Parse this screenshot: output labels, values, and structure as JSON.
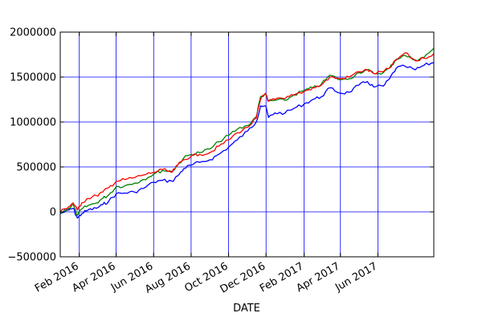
{
  "chart_data": {
    "type": "line",
    "title": "",
    "xlabel": "DATE",
    "ylabel": "",
    "xlim": [
      "2016-01-01",
      "2017-08-31"
    ],
    "ylim": [
      -500000,
      2000000
    ],
    "grid": true,
    "legend": "none",
    "x_ticks": [
      {
        "date": "2016-02-01",
        "label": "Feb 2016"
      },
      {
        "date": "2016-04-01",
        "label": "Apr 2016"
      },
      {
        "date": "2016-06-01",
        "label": "Jun 2016"
      },
      {
        "date": "2016-08-01",
        "label": "Aug 2016"
      },
      {
        "date": "2016-10-01",
        "label": "Oct 2016"
      },
      {
        "date": "2016-12-01",
        "label": "Dec 2016"
      },
      {
        "date": "2017-02-01",
        "label": "Feb 2017"
      },
      {
        "date": "2017-04-01",
        "label": "Apr 2017"
      },
      {
        "date": "2017-06-01",
        "label": "Jun 2017"
      }
    ],
    "y_ticks": [
      {
        "value": -500000,
        "label": "−500000"
      },
      {
        "value": 0,
        "label": "0"
      },
      {
        "value": 500000,
        "label": "500000"
      },
      {
        "value": 1000000,
        "label": "1000000"
      },
      {
        "value": 1500000,
        "label": "1500000"
      },
      {
        "value": 2000000,
        "label": "2000000"
      }
    ],
    "series": [
      {
        "color": "#0000ff",
        "points": [
          [
            "2016-01-01",
            -20000
          ],
          [
            "2016-01-15",
            20000
          ],
          [
            "2016-01-22",
            40000
          ],
          [
            "2016-01-29",
            -70000
          ],
          [
            "2016-02-05",
            -20000
          ],
          [
            "2016-02-15",
            20000
          ],
          [
            "2016-02-29",
            40000
          ],
          [
            "2016-03-10",
            80000
          ],
          [
            "2016-03-20",
            120000
          ],
          [
            "2016-04-01",
            200000
          ],
          [
            "2016-04-15",
            210000
          ],
          [
            "2016-05-01",
            220000
          ],
          [
            "2016-05-15",
            260000
          ],
          [
            "2016-06-01",
            330000
          ],
          [
            "2016-06-15",
            350000
          ],
          [
            "2016-07-01",
            340000
          ],
          [
            "2016-07-10",
            400000
          ],
          [
            "2016-07-20",
            480000
          ],
          [
            "2016-08-01",
            520000
          ],
          [
            "2016-08-15",
            550000
          ],
          [
            "2016-09-01",
            580000
          ],
          [
            "2016-09-15",
            640000
          ],
          [
            "2016-10-01",
            720000
          ],
          [
            "2016-10-15",
            800000
          ],
          [
            "2016-11-01",
            900000
          ],
          [
            "2016-11-15",
            1000000
          ],
          [
            "2016-11-22",
            1180000
          ],
          [
            "2016-11-30",
            1180000
          ],
          [
            "2016-12-05",
            1050000
          ],
          [
            "2016-12-15",
            1100000
          ],
          [
            "2017-01-01",
            1100000
          ],
          [
            "2017-01-15",
            1150000
          ],
          [
            "2017-02-01",
            1200000
          ],
          [
            "2017-02-15",
            1250000
          ],
          [
            "2017-03-01",
            1280000
          ],
          [
            "2017-03-15",
            1380000
          ],
          [
            "2017-04-01",
            1320000
          ],
          [
            "2017-04-15",
            1330000
          ],
          [
            "2017-05-01",
            1410000
          ],
          [
            "2017-05-15",
            1450000
          ],
          [
            "2017-05-25",
            1390000
          ],
          [
            "2017-06-10",
            1400000
          ],
          [
            "2017-06-20",
            1480000
          ],
          [
            "2017-07-01",
            1600000
          ],
          [
            "2017-07-15",
            1620000
          ],
          [
            "2017-08-01",
            1580000
          ],
          [
            "2017-08-15",
            1630000
          ],
          [
            "2017-08-31",
            1660000
          ]
        ]
      },
      {
        "color": "#008000",
        "points": [
          [
            "2016-01-01",
            -10000
          ],
          [
            "2016-01-15",
            40000
          ],
          [
            "2016-01-22",
            80000
          ],
          [
            "2016-01-29",
            -40000
          ],
          [
            "2016-02-05",
            30000
          ],
          [
            "2016-02-15",
            70000
          ],
          [
            "2016-02-29",
            100000
          ],
          [
            "2016-03-10",
            150000
          ],
          [
            "2016-03-20",
            190000
          ],
          [
            "2016-04-01",
            280000
          ],
          [
            "2016-04-15",
            290000
          ],
          [
            "2016-05-01",
            320000
          ],
          [
            "2016-05-15",
            360000
          ],
          [
            "2016-06-01",
            420000
          ],
          [
            "2016-06-15",
            460000
          ],
          [
            "2016-07-01",
            450000
          ],
          [
            "2016-07-10",
            520000
          ],
          [
            "2016-07-20",
            600000
          ],
          [
            "2016-08-01",
            640000
          ],
          [
            "2016-08-15",
            660000
          ],
          [
            "2016-09-01",
            700000
          ],
          [
            "2016-09-15",
            780000
          ],
          [
            "2016-10-01",
            850000
          ],
          [
            "2016-10-15",
            920000
          ],
          [
            "2016-11-01",
            960000
          ],
          [
            "2016-11-15",
            1060000
          ],
          [
            "2016-11-22",
            1280000
          ],
          [
            "2016-11-30",
            1310000
          ],
          [
            "2016-12-05",
            1230000
          ],
          [
            "2016-12-15",
            1240000
          ],
          [
            "2017-01-01",
            1240000
          ],
          [
            "2017-01-15",
            1300000
          ],
          [
            "2017-02-01",
            1350000
          ],
          [
            "2017-02-15",
            1380000
          ],
          [
            "2017-03-01",
            1420000
          ],
          [
            "2017-03-15",
            1520000
          ],
          [
            "2017-04-01",
            1470000
          ],
          [
            "2017-04-15",
            1480000
          ],
          [
            "2017-05-01",
            1550000
          ],
          [
            "2017-05-15",
            1580000
          ],
          [
            "2017-05-25",
            1540000
          ],
          [
            "2017-06-10",
            1550000
          ],
          [
            "2017-06-20",
            1600000
          ],
          [
            "2017-07-01",
            1700000
          ],
          [
            "2017-07-15",
            1740000
          ],
          [
            "2017-08-01",
            1690000
          ],
          [
            "2017-08-15",
            1720000
          ],
          [
            "2017-08-31",
            1820000
          ]
        ]
      },
      {
        "color": "#ff0000",
        "points": [
          [
            "2016-01-01",
            0
          ],
          [
            "2016-01-15",
            60000
          ],
          [
            "2016-01-22",
            100000
          ],
          [
            "2016-01-29",
            20000
          ],
          [
            "2016-02-05",
            100000
          ],
          [
            "2016-02-15",
            150000
          ],
          [
            "2016-02-29",
            180000
          ],
          [
            "2016-03-10",
            220000
          ],
          [
            "2016-03-20",
            270000
          ],
          [
            "2016-04-01",
            340000
          ],
          [
            "2016-04-15",
            360000
          ],
          [
            "2016-05-01",
            380000
          ],
          [
            "2016-05-15",
            410000
          ],
          [
            "2016-06-01",
            440000
          ],
          [
            "2016-06-15",
            470000
          ],
          [
            "2016-07-01",
            440000
          ],
          [
            "2016-07-10",
            520000
          ],
          [
            "2016-07-20",
            580000
          ],
          [
            "2016-08-01",
            620000
          ],
          [
            "2016-08-15",
            640000
          ],
          [
            "2016-09-01",
            660000
          ],
          [
            "2016-09-15",
            730000
          ],
          [
            "2016-10-01",
            800000
          ],
          [
            "2016-10-15",
            880000
          ],
          [
            "2016-11-01",
            940000
          ],
          [
            "2016-11-15",
            1040000
          ],
          [
            "2016-11-22",
            1250000
          ],
          [
            "2016-11-30",
            1320000
          ],
          [
            "2016-12-05",
            1230000
          ],
          [
            "2016-12-15",
            1250000
          ],
          [
            "2017-01-01",
            1260000
          ],
          [
            "2017-01-15",
            1300000
          ],
          [
            "2017-02-01",
            1340000
          ],
          [
            "2017-02-15",
            1380000
          ],
          [
            "2017-03-01",
            1410000
          ],
          [
            "2017-03-15",
            1500000
          ],
          [
            "2017-04-01",
            1480000
          ],
          [
            "2017-04-15",
            1500000
          ],
          [
            "2017-05-01",
            1560000
          ],
          [
            "2017-05-15",
            1580000
          ],
          [
            "2017-05-25",
            1540000
          ],
          [
            "2017-06-10",
            1560000
          ],
          [
            "2017-06-20",
            1600000
          ],
          [
            "2017-07-01",
            1690000
          ],
          [
            "2017-07-15",
            1770000
          ],
          [
            "2017-08-01",
            1680000
          ],
          [
            "2017-08-15",
            1710000
          ],
          [
            "2017-08-31",
            1760000
          ]
        ]
      }
    ]
  }
}
